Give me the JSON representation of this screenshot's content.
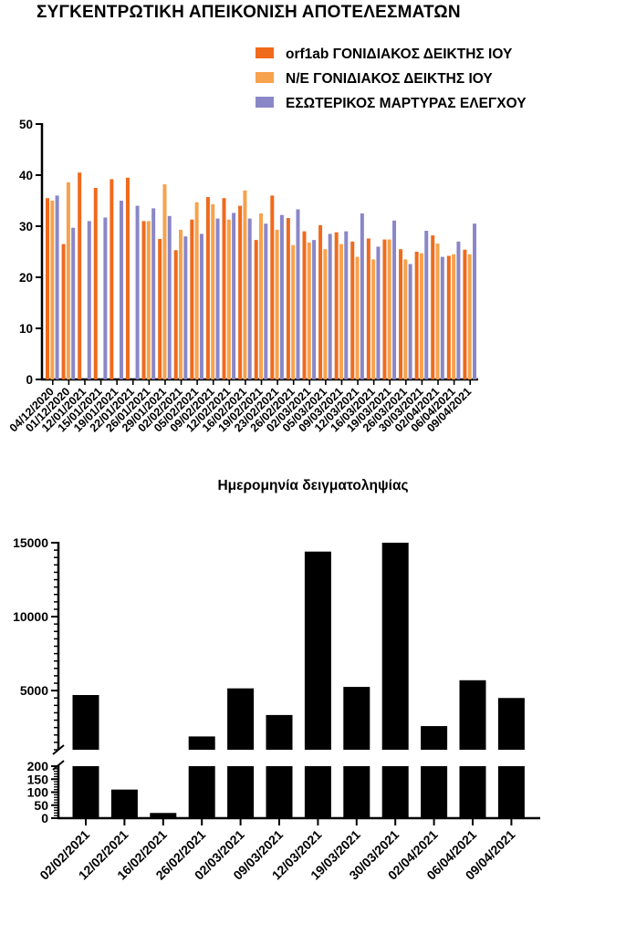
{
  "title": "ΣΥΓΚΕΝΤΡΩΤΙΚΗ ΑΠΕΙΚΟΝΙΣΗ ΑΠΟΤΕΛΕΣΜΑΤΩΝ",
  "colors": {
    "orf1ab": "#f06a1c",
    "ne": "#f7a24c",
    "internal": "#8a87c8",
    "bars2": "#000000"
  },
  "chart_data": [
    {
      "type": "bar",
      "title": "ΣΥΓΚΕΝΤΡΩΤΙΚΗ ΑΠΕΙΚΟΝΙΣΗ ΑΠΟΤΕΛΕΣΜΑΤΩΝ",
      "xlabel": "",
      "ylabel": "",
      "ylim": [
        0,
        50
      ],
      "yticks": [
        0,
        10,
        20,
        30,
        40,
        50
      ],
      "legend_position": "top-right",
      "categories": [
        "04/12/2020",
        "01/12/2020",
        "12/01/2021",
        "15/01/2021",
        "19/01/2021",
        "22/01/2021",
        "26/01/2021",
        "29/01/2021",
        "02/02/2021",
        "05/02/2021",
        "09/02/2021",
        "12/02/2021",
        "16/02/2021",
        "19/02/2021",
        "23/02/2021",
        "26/02/2021",
        "02/03/2021",
        "05/03/2021",
        "09/03/2021",
        "12/03/2021",
        "16/03/2021",
        "19/03/2021",
        "26/03/2021",
        "30/03/2021",
        "02/04/2021",
        "06/04/2021",
        "09/04/2021"
      ],
      "series": [
        {
          "name": "orf1ab ΓΟΝΙΔΙΑΚΟΣ ΔΕΙΚΤΗΣ ΙΟΥ",
          "values": [
            35.5,
            26.5,
            40.5,
            37.5,
            39.2,
            39.5,
            31,
            27.5,
            25.3,
            31.3,
            35.7,
            35.5,
            34,
            27.3,
            36,
            31.6,
            29,
            30.2,
            28.8,
            27,
            27.6,
            27.4,
            25.5,
            25,
            28.2,
            24.2,
            25.4
          ]
        },
        {
          "name": "N/E ΓΟΝΙΔΙΑΚΟΣ ΔΕΙΚΤΗΣ ΙΟΥ",
          "values": [
            35,
            38.6,
            null,
            null,
            null,
            null,
            31,
            38.2,
            29.3,
            34.7,
            34.3,
            31.3,
            37,
            32.5,
            29.3,
            26.3,
            26.8,
            25.5,
            26.5,
            24,
            23.5,
            27.4,
            23.5,
            24.7,
            26.6,
            24.5,
            24.5
          ]
        },
        {
          "name": "ΕΣΩΤΕΡΙΚΟΣ ΜΑΡΤΥΡΑΣ ΕΛΕΓΧΟΥ",
          "values": [
            36,
            29.7,
            31,
            31.7,
            35,
            34,
            33.5,
            32,
            28,
            28.5,
            31.5,
            32.6,
            31.5,
            30.5,
            32.2,
            33.3,
            27.3,
            28.5,
            29,
            32.5,
            26,
            31.1,
            22.6,
            29.1,
            24,
            27,
            30.5
          ]
        }
      ]
    },
    {
      "type": "bar",
      "title": "Ημερομηνία δειγματοληψίας",
      "xlabel": "",
      "ylabel": "",
      "axis_break": [
        200,
        1000
      ],
      "ylim": [
        0,
        15000
      ],
      "yticks_lower": [
        0,
        50,
        100,
        150,
        200
      ],
      "yticks_upper": [
        5000,
        10000,
        15000
      ],
      "categories": [
        "02/02/2021",
        "12/02/2021",
        "16/02/2021",
        "26/02/2021",
        "02/03/2021",
        "09/03/2021",
        "12/03/2021",
        "19/03/2021",
        "30/03/2021",
        "02/04/2021",
        "06/04/2021",
        "09/04/2021"
      ],
      "values": [
        4700,
        110,
        20,
        1900,
        5150,
        3350,
        14400,
        5250,
        15000,
        2600,
        5700,
        4500
      ]
    }
  ]
}
